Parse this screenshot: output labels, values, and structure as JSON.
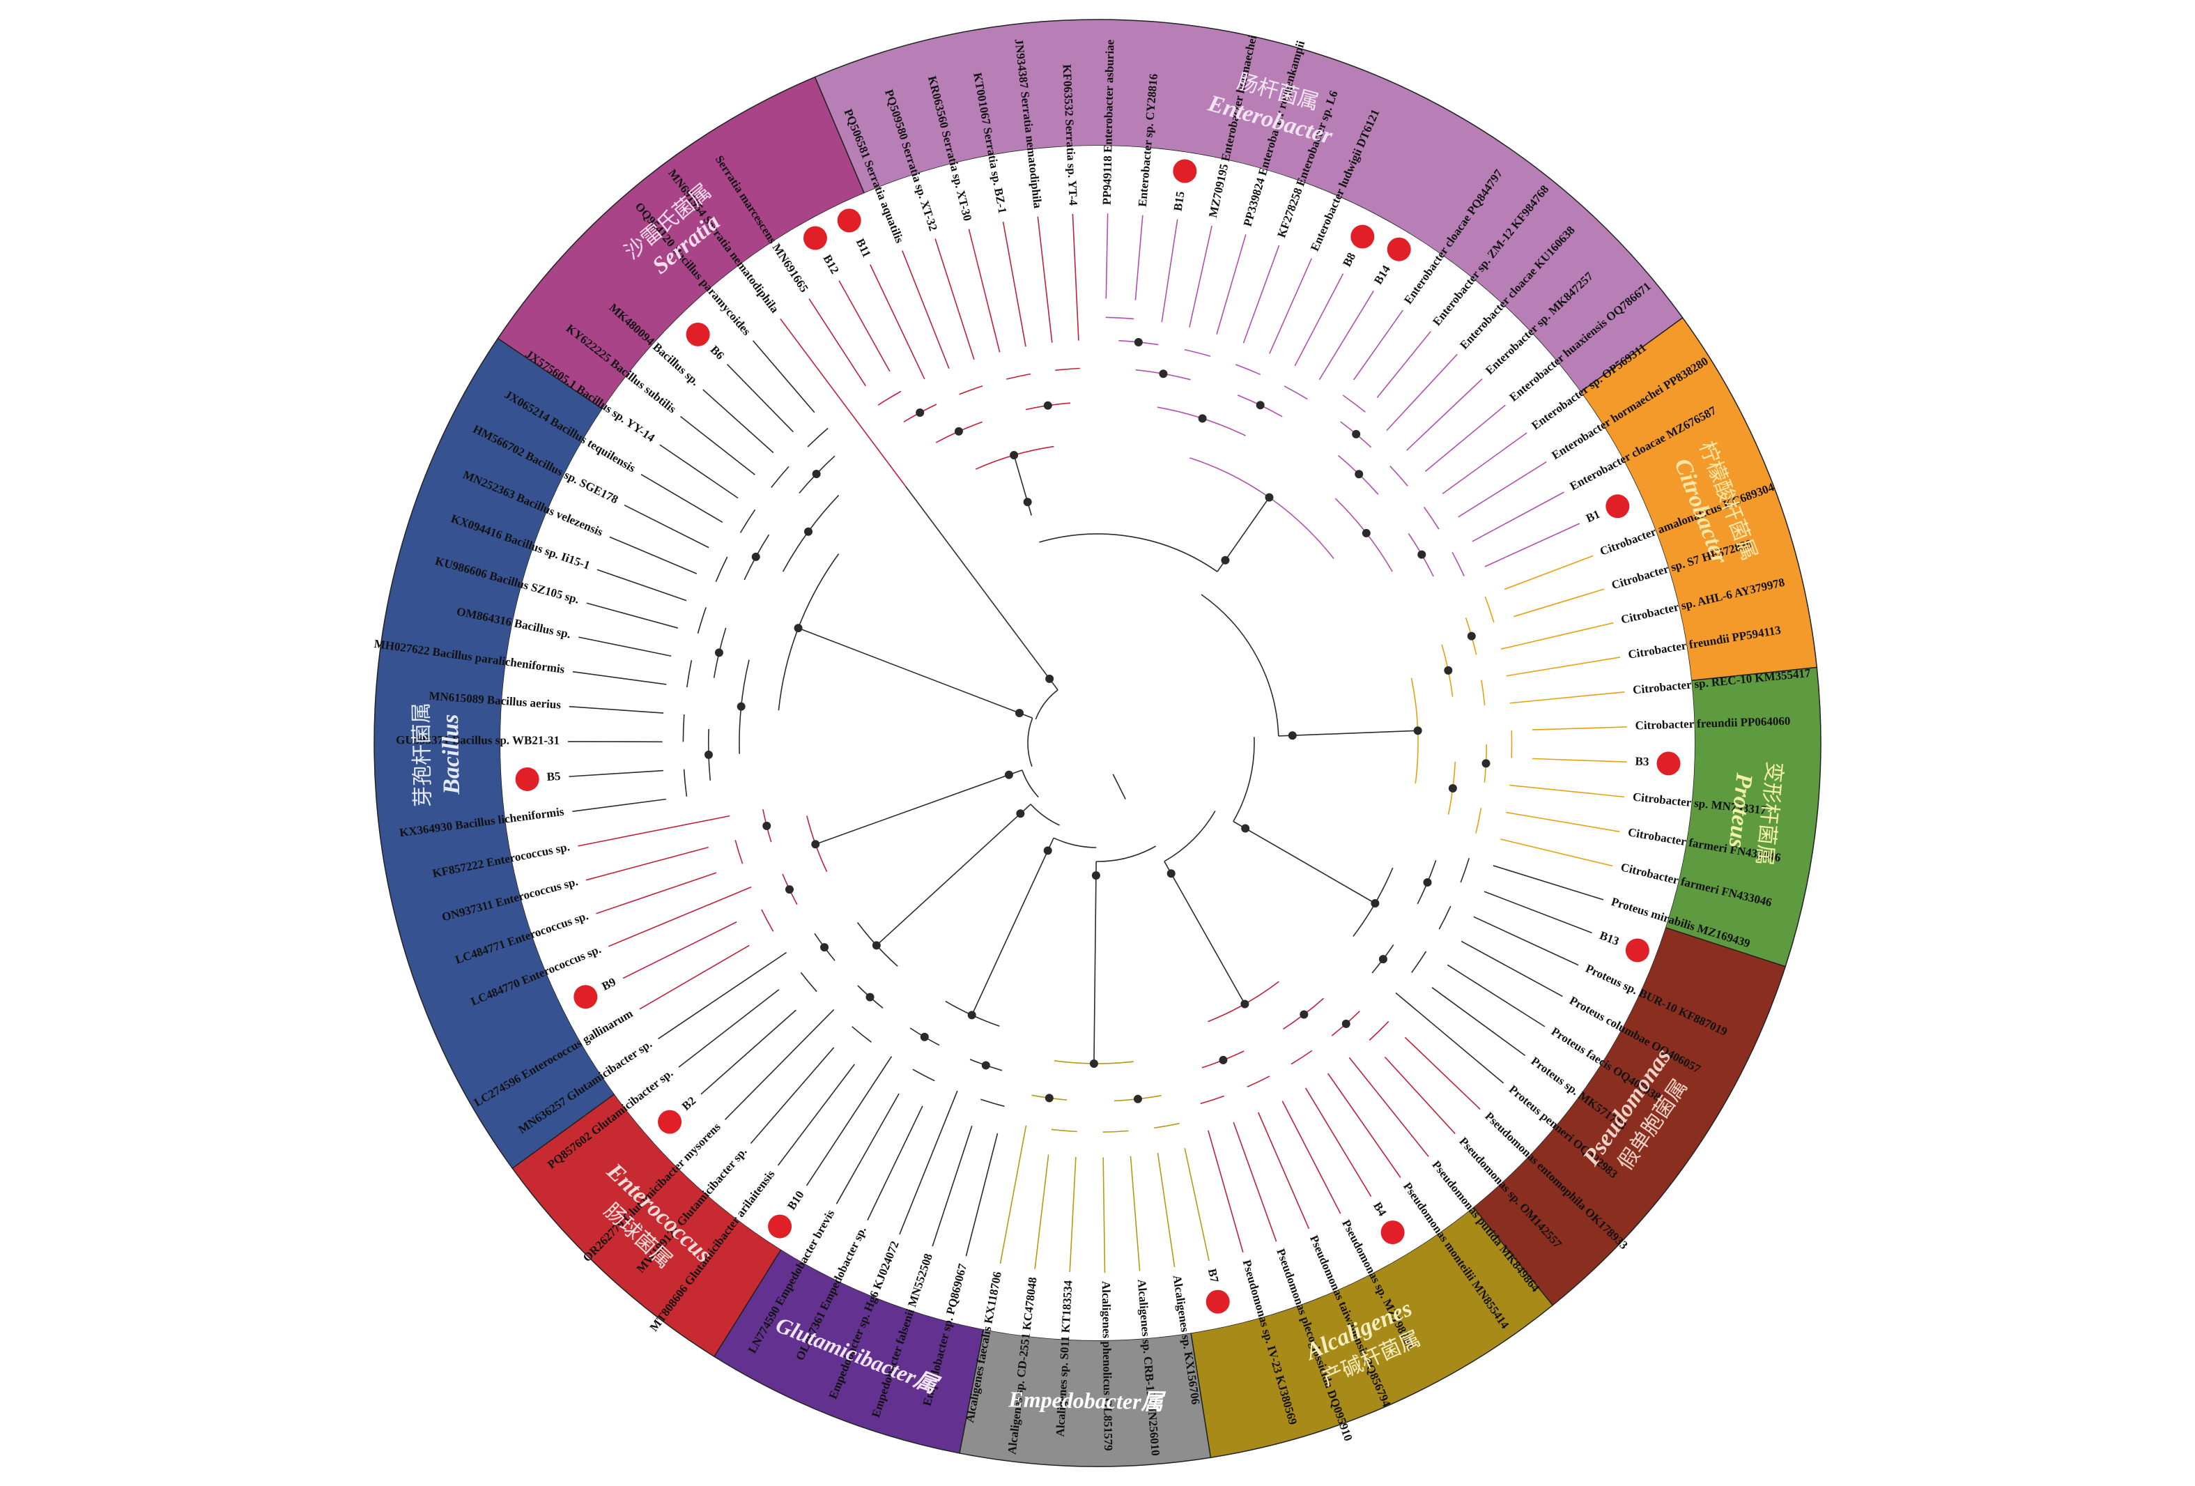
{
  "genera": [
    {
      "key": "enterobacter",
      "cn": "肠杆菌属",
      "en": "Enterobacter",
      "mix": "",
      "color": "#b87fb6",
      "text_color": "#f3e4f3",
      "branch_color": "#b24fae"
    },
    {
      "key": "citrobacter",
      "cn": "柠檬酸杆菌属",
      "en": "Citrobacter",
      "mix": "",
      "color": "#f39a2a",
      "text_color": "#fbe7a8",
      "branch_color": "#e8a012"
    },
    {
      "key": "proteus",
      "cn": "变形杆菌属",
      "en": "Proteus",
      "mix": "",
      "color": "#5e9a3f",
      "text_color": "#f4f1a8",
      "branch_color": "#2b2b2b"
    },
    {
      "key": "pseudomonas",
      "cn": "假单胞菌属",
      "en": "Pseudomonas",
      "mix": "",
      "color": "#8a2e20",
      "text_color": "#f2d3c8",
      "branch_color": "#c0203a"
    },
    {
      "key": "alcaligenes",
      "cn": "产碱杆菌属",
      "en": "Alcaligenes",
      "mix": "",
      "color": "#a88a19",
      "text_color": "#f6eec0",
      "branch_color": "#b89a10"
    },
    {
      "key": "empedobacter",
      "cn": "",
      "en": "",
      "mix": "Empedobacter属",
      "color": "#8e8e8e",
      "text_color": "#ffffff",
      "branch_color": "#2b2b2b"
    },
    {
      "key": "glutamicibacter",
      "cn": "",
      "en": "",
      "mix": "Glutamicibacter属",
      "color": "#633290",
      "text_color": "#f0e6f7",
      "branch_color": "#2b2b2b"
    },
    {
      "key": "enterococcus",
      "cn": "肠球菌属",
      "en": "Enterococcus",
      "mix": "",
      "color": "#c82a32",
      "text_color": "#f8dcd8",
      "branch_color": "#c0203a"
    },
    {
      "key": "bacillus",
      "cn": "芽孢杆菌属",
      "en": "Bacillus",
      "mix": "",
      "color": "#375291",
      "text_color": "#e4ebf7",
      "branch_color": "#2b2b2b"
    },
    {
      "key": "serratia",
      "cn": "沙雷氏菌属",
      "en": "Serratia",
      "mix": "",
      "color": "#a84487",
      "text_color": "#f6dcee",
      "branch_color": "#c0203a"
    }
  ],
  "leaves": [
    {
      "label": "Serratia marcescens MN691665",
      "genus": "serratia",
      "isolate": false
    },
    {
      "label": "B12",
      "genus": "serratia",
      "isolate": true
    },
    {
      "label": "B11",
      "genus": "serratia",
      "isolate": true
    },
    {
      "label": "PQ506581 Serratia aquatilis",
      "genus": "serratia",
      "isolate": false
    },
    {
      "label": "PQ509580 Serratia sp. XT-32",
      "genus": "serratia",
      "isolate": false
    },
    {
      "label": "KR063560 Serratia sp. XT-30",
      "genus": "serratia",
      "isolate": false
    },
    {
      "label": "KT001067 Serratia sp. BZ-1",
      "genus": "serratia",
      "isolate": false
    },
    {
      "label": "JN934387 Serratia nematodiphila",
      "genus": "serratia",
      "isolate": false
    },
    {
      "label": "KF063532 Serratia sp. YT-4",
      "genus": "serratia",
      "isolate": false
    },
    {
      "label": "PP949118 Enterobacter asburiae",
      "genus": "enterobacter",
      "isolate": false
    },
    {
      "label": "Enterobacter sp. CY28816",
      "genus": "enterobacter",
      "isolate": false
    },
    {
      "label": "B15",
      "genus": "enterobacter",
      "isolate": true
    },
    {
      "label": "MZ709195 Enterobacter hormaechei",
      "genus": "enterobacter",
      "isolate": false
    },
    {
      "label": "PP339824 Enterobacter roggenkampii",
      "genus": "enterobacter",
      "isolate": false
    },
    {
      "label": "KF278258 Enterobacter sp. L6",
      "genus": "enterobacter",
      "isolate": false
    },
    {
      "label": "Enterobacter ludwigii DT6121",
      "genus": "enterobacter",
      "isolate": false
    },
    {
      "label": "B8",
      "genus": "enterobacter",
      "isolate": true
    },
    {
      "label": "B14",
      "genus": "enterobacter",
      "isolate": true
    },
    {
      "label": "Enterobacter cloacae PQ844797",
      "genus": "enterobacter",
      "isolate": false
    },
    {
      "label": "Enterobacter sp. ZM-12 KF984768",
      "genus": "enterobacter",
      "isolate": false
    },
    {
      "label": "Enterobacter cloacae KU160638",
      "genus": "enterobacter",
      "isolate": false
    },
    {
      "label": "Enterobacter sp. MK847257",
      "genus": "enterobacter",
      "isolate": false
    },
    {
      "label": "Enterobacter huaxiensis OQ786671",
      "genus": "enterobacter",
      "isolate": false
    },
    {
      "label": "Enterobacter sp. OP569311",
      "genus": "enterobacter",
      "isolate": false
    },
    {
      "label": "Enterobacter hormaechei PP838280",
      "genus": "enterobacter",
      "isolate": false
    },
    {
      "label": "Enterobacter cloacae MZ676587",
      "genus": "enterobacter",
      "isolate": false
    },
    {
      "label": "B1",
      "genus": "enterobacter",
      "isolate": true
    },
    {
      "label": "Citrobacter amalonaticus KC689304",
      "genus": "citrobacter",
      "isolate": false
    },
    {
      "label": "Citrobacter sp. S7 HF572839",
      "genus": "citrobacter",
      "isolate": false
    },
    {
      "label": "Citrobacter sp. AHL-6 AY379978",
      "genus": "citrobacter",
      "isolate": false
    },
    {
      "label": "Citrobacter freundii PP594113",
      "genus": "citrobacter",
      "isolate": false
    },
    {
      "label": "Citrobacter sp. REC-10 KM355417",
      "genus": "citrobacter",
      "isolate": false
    },
    {
      "label": "Citrobacter freundii PP064060",
      "genus": "citrobacter",
      "isolate": false
    },
    {
      "label": "B3",
      "genus": "citrobacter",
      "isolate": true
    },
    {
      "label": "Citrobacter sp. MN793317",
      "genus": "citrobacter",
      "isolate": false
    },
    {
      "label": "Citrobacter farmeri FN433046",
      "genus": "citrobacter",
      "isolate": false
    },
    {
      "label": "Citrobacter farmeri FN433046",
      "genus": "citrobacter",
      "isolate": false
    },
    {
      "label": "Proteus mirabilis MZ169439",
      "genus": "proteus",
      "isolate": false
    },
    {
      "label": "B13",
      "genus": "proteus",
      "isolate": true
    },
    {
      "label": "Proteus sp. BUR-10 KF887019",
      "genus": "proteus",
      "isolate": false
    },
    {
      "label": "Proteus columbae OQ406057",
      "genus": "proteus",
      "isolate": false
    },
    {
      "label": "Proteus faecis OQ406038",
      "genus": "proteus",
      "isolate": false
    },
    {
      "label": "Proteus sp. MK571713",
      "genus": "proteus",
      "isolate": false
    },
    {
      "label": "Proteus penneri OQ422983",
      "genus": "proteus",
      "isolate": false
    },
    {
      "label": "Pseudomonas entomophila OK178933",
      "genus": "pseudomonas",
      "isolate": false
    },
    {
      "label": "Pseudomonas sp. OM142557",
      "genus": "pseudomonas",
      "isolate": false
    },
    {
      "label": "Pseudomonas putida MK849864",
      "genus": "pseudomonas",
      "isolate": false
    },
    {
      "label": "Pseudomonas monteilii MN855414",
      "genus": "pseudomonas",
      "isolate": false
    },
    {
      "label": "B4",
      "genus": "pseudomonas",
      "isolate": true
    },
    {
      "label": "Pseudomonas sp. MZ198263",
      "genus": "pseudomonas",
      "isolate": false
    },
    {
      "label": "Pseudomonas taiwanensis PQ856794",
      "genus": "pseudomonas",
      "isolate": false
    },
    {
      "label": "Pseudomonas plecoglossicida DQ095910",
      "genus": "pseudomonas",
      "isolate": false
    },
    {
      "label": "Pseudomonas sp. IV-23 KJ380569",
      "genus": "pseudomonas",
      "isolate": false
    },
    {
      "label": "B7",
      "genus": "alcaligenes",
      "isolate": true
    },
    {
      "label": "Alcaligenes sp. KX156706",
      "genus": "alcaligenes",
      "isolate": false
    },
    {
      "label": "Alcaligenes sp. CRB-127 JN256010",
      "genus": "alcaligenes",
      "isolate": false
    },
    {
      "label": "Alcaligenes phenolicus OL851579",
      "genus": "alcaligenes",
      "isolate": false
    },
    {
      "label": "Alcaligenes sp. S011 KT183534",
      "genus": "alcaligenes",
      "isolate": false
    },
    {
      "label": "Alcaligenes sp. CD-2551 KC478048",
      "genus": "alcaligenes",
      "isolate": false
    },
    {
      "label": "Alcaligenes faecalis KX118706",
      "genus": "alcaligenes",
      "isolate": false
    },
    {
      "label": "Empedobacter sp. PQ869067",
      "genus": "empedobacter",
      "isolate": false
    },
    {
      "label": "Empedobacter falsenii MN552508",
      "genus": "empedobacter",
      "isolate": false
    },
    {
      "label": "Empedobacter sp. Hg6 KJ024072",
      "genus": "empedobacter",
      "isolate": false
    },
    {
      "label": "OL897361 Empedobacter sp.",
      "genus": "empedobacter",
      "isolate": false
    },
    {
      "label": "LN774590 Empedobacter brevis",
      "genus": "empedobacter",
      "isolate": false
    },
    {
      "label": "B10",
      "genus": "empedobacter",
      "isolate": true
    },
    {
      "label": "MT808606 Glutamicibacter arilaitensis",
      "genus": "glutamicibacter",
      "isolate": false
    },
    {
      "label": "MW199121 Glutamicibacter sp.",
      "genus": "glutamicibacter",
      "isolate": false
    },
    {
      "label": "OR262779 Glutamicibacter mysorens",
      "genus": "glutamicibacter",
      "isolate": false
    },
    {
      "label": "B2",
      "genus": "glutamicibacter",
      "isolate": true
    },
    {
      "label": "PQ857602 Glutamicibacter sp.",
      "genus": "glutamicibacter",
      "isolate": false
    },
    {
      "label": "MN636257 Glutamicibacter sp.",
      "genus": "glutamicibacter",
      "isolate": false
    },
    {
      "label": "LC274596 Enterococcus gallinarum",
      "genus": "enterococcus",
      "isolate": false
    },
    {
      "label": "B9",
      "genus": "enterococcus",
      "isolate": true
    },
    {
      "label": "LC484770 Enterococcus sp.",
      "genus": "enterococcus",
      "isolate": false
    },
    {
      "label": "LC484771 Enterococcus sp.",
      "genus": "enterococcus",
      "isolate": false
    },
    {
      "label": "ON937311 Enterococcus sp.",
      "genus": "enterococcus",
      "isolate": false
    },
    {
      "label": "KF857222 Enterococcus sp.",
      "genus": "enterococcus",
      "isolate": false
    },
    {
      "label": "KX364930 Bacillus licheniformis",
      "genus": "bacillus",
      "isolate": false
    },
    {
      "label": "B5",
      "genus": "bacillus",
      "isolate": true
    },
    {
      "label": "GU595371 Bacillus sp. WB21-31",
      "genus": "bacillus",
      "isolate": false
    },
    {
      "label": "MN615089 Bacillus aerius",
      "genus": "bacillus",
      "isolate": false
    },
    {
      "label": "MH027622 Bacillus paralicheniformis",
      "genus": "bacillus",
      "isolate": false
    },
    {
      "label": "OM864316 Bacillus sp.",
      "genus": "bacillus",
      "isolate": false
    },
    {
      "label": "KU986606 Bacillus SZ105 sp.",
      "genus": "bacillus",
      "isolate": false
    },
    {
      "label": "KX094416 Bacillus sp. Ii15-1",
      "genus": "bacillus",
      "isolate": false
    },
    {
      "label": "MN252363 Bacillus velezensis",
      "genus": "bacillus",
      "isolate": false
    },
    {
      "label": "HM566702 Bacillus sp. SGE178",
      "genus": "bacillus",
      "isolate": false
    },
    {
      "label": "JX065214 Bacillus tequilensis",
      "genus": "bacillus",
      "isolate": false
    },
    {
      "label": "JX575605.1 Bacillus sp. YY-14",
      "genus": "bacillus",
      "isolate": false
    },
    {
      "label": "KY622225 Bacillus subtilis",
      "genus": "bacillus",
      "isolate": false
    },
    {
      "label": "MK480094 Bacillus sp.",
      "genus": "bacillus",
      "isolate": false
    },
    {
      "label": "B6",
      "genus": "bacillus",
      "isolate": true
    },
    {
      "label": "OQ954120 Bacillus paramycoides",
      "genus": "bacillus",
      "isolate": false
    },
    {
      "label": "MN691954 Serratia nematodiphila",
      "genus": "serratia",
      "isolate": false
    }
  ]
}
